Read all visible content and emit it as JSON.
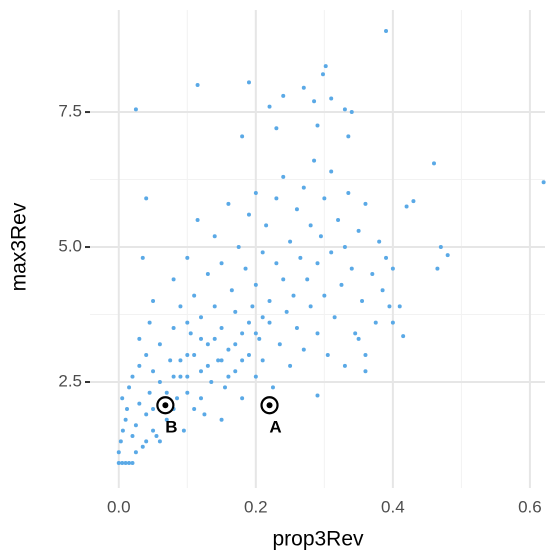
{
  "chart_data": {
    "type": "scatter",
    "xlabel": "prop3Rev",
    "ylabel": "max3Rev",
    "xlim": [
      -0.042,
      0.622
    ],
    "ylim": [
      0.537,
      9.39
    ],
    "xticks": [
      {
        "value": 0,
        "label": "0.0"
      },
      0.2,
      0.4,
      0.6
    ],
    "yticks": [
      2.5,
      {
        "value": 5,
        "label": "5.0"
      },
      7.5
    ],
    "grid": true,
    "series": [
      {
        "color": "#5aa9e6",
        "x": [
          0.39,
          0.302,
          0.298,
          0.19,
          0.115,
          0.025,
          0.27,
          0.285,
          0.24,
          0.31,
          0.33,
          0.34,
          0.22,
          0.29,
          0.23,
          0.18,
          0.335,
          0.46,
          0.62,
          0.04,
          0.43,
          0.42,
          0.47,
          0.48,
          0.465,
          0.4,
          0.41,
          0.4,
          0.415,
          0.29,
          0.35,
          0.36,
          0,
          0.005,
          0.01,
          0.015,
          0.02,
          0,
          0.003,
          0.006,
          0.01,
          0.012,
          0.005,
          0.015,
          0.02,
          0.025,
          0.03,
          0.02,
          0.03,
          0.035,
          0.04,
          0.045,
          0.04,
          0.03,
          0.045,
          0.05,
          0.05,
          0.035,
          0.055,
          0.06,
          0.06,
          0.07,
          0.075,
          0.08,
          0.08,
          0.085,
          0.09,
          0.09,
          0.095,
          0.1,
          0.1,
          0.1,
          0.105,
          0.11,
          0.11,
          0.115,
          0.12,
          0.12,
          0.125,
          0.13,
          0.13,
          0.135,
          0.14,
          0.14,
          0.145,
          0.15,
          0.15,
          0.15,
          0.155,
          0.16,
          0.16,
          0.165,
          0.17,
          0.17,
          0.175,
          0.18,
          0.18,
          0.185,
          0.19,
          0.19,
          0.195,
          0.2,
          0.2,
          0.2,
          0.205,
          0.21,
          0.21,
          0.215,
          0.22,
          0.22,
          0.225,
          0.23,
          0.23,
          0.235,
          0.24,
          0.24,
          0.245,
          0.25,
          0.25,
          0.255,
          0.26,
          0.26,
          0.265,
          0.27,
          0.27,
          0.275,
          0.28,
          0.28,
          0.285,
          0.29,
          0.29,
          0.295,
          0.3,
          0.3,
          0.305,
          0.31,
          0.31,
          0.315,
          0.32,
          0.325,
          0.33,
          0.33,
          0.335,
          0.34,
          0.345,
          0.35,
          0.355,
          0.36,
          0.36,
          0.37,
          0.375,
          0.38,
          0.385,
          0.39,
          0.395,
          0.06,
          0.07,
          0.08,
          0.09,
          0.1,
          0.11,
          0.12,
          0.13,
          0.14,
          0.15,
          0.16,
          0.17,
          0.18,
          0.19,
          0.2,
          0.21,
          0.12,
          0.1,
          0.08,
          0.05,
          0.05,
          0.025,
          0.04
        ],
        "values": [
          9.0,
          8.35,
          8.2,
          8.05,
          8.0,
          7.55,
          7.95,
          7.7,
          7.8,
          7.75,
          7.55,
          7.5,
          7.6,
          7.25,
          7.2,
          7.05,
          7.05,
          6.55,
          6.2,
          5.9,
          5.85,
          5.75,
          5.0,
          4.85,
          4.6,
          4.6,
          3.9,
          3.6,
          3.35,
          2.25,
          3.3,
          3.0,
          1,
          1,
          1,
          1,
          1,
          1.2,
          1.4,
          1.6,
          1.8,
          2.0,
          2.2,
          2.4,
          1.5,
          1.7,
          2.1,
          2.6,
          2.8,
          1.3,
          1.9,
          2.3,
          3.0,
          3.3,
          3.6,
          2.7,
          4.0,
          4.8,
          1.5,
          2.5,
          3.2,
          1.8,
          2.9,
          3.5,
          4.4,
          2.2,
          2.6,
          3.9,
          1.6,
          3.0,
          4.8,
          2.3,
          3.4,
          2.0,
          4.1,
          5.5,
          2.7,
          3.7,
          1.9,
          3.2,
          4.5,
          2.5,
          3.9,
          5.2,
          2.9,
          3.5,
          1.8,
          4.7,
          2.4,
          3.1,
          5.8,
          4.2,
          2.7,
          3.8,
          5.0,
          2.2,
          3.4,
          4.6,
          3.0,
          5.6,
          3.9,
          2.6,
          4.3,
          6.0,
          3.3,
          4.9,
          2.9,
          5.4,
          3.6,
          4.0,
          2.4,
          4.7,
          5.9,
          3.2,
          4.4,
          6.3,
          3.8,
          5.1,
          2.8,
          4.1,
          5.7,
          3.5,
          4.8,
          6.1,
          3.1,
          4.4,
          5.4,
          3.9,
          6.6,
          4.7,
          3.4,
          5.2,
          4.1,
          5.9,
          3.0,
          4.9,
          6.4,
          3.7,
          5.5,
          4.3,
          5.0,
          2.8,
          6.0,
          4.6,
          3.4,
          5.3,
          4.0,
          5.8,
          2.7,
          4.5,
          3.6,
          5.1,
          4.2,
          4.8,
          3.9,
          1.4,
          2.3,
          2.0,
          2.9,
          2.6,
          3.0,
          2.2,
          2.8,
          3.3,
          2.9,
          2.6,
          3.2,
          2.9,
          3.6,
          3.4,
          3.7,
          3.3,
          3.6,
          2.6,
          2.0,
          1.6,
          1.2,
          1.4
        ]
      }
    ],
    "annotations": [
      {
        "label": "B",
        "x": 0.068,
        "y": 2.07
      },
      {
        "label": "A",
        "x": 0.22,
        "y": 2.07
      }
    ]
  }
}
